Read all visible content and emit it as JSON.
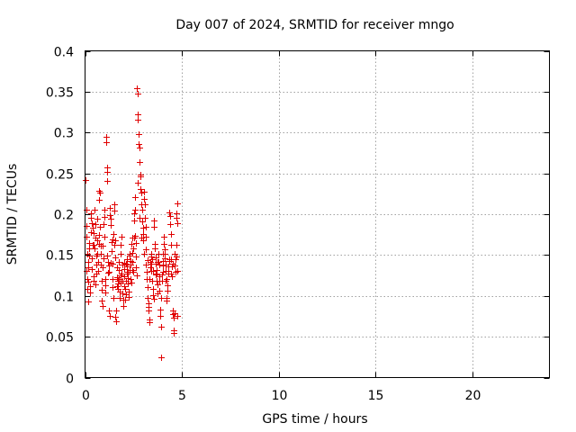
{
  "chart_data": {
    "type": "scatter",
    "title": "Day 007 of 2024, SRMTID for receiver mngo",
    "xlabel": "GPS time / hours",
    "ylabel": "SRMTID / TECUs",
    "xlim": [
      0,
      24
    ],
    "ylim": [
      0,
      0.4
    ],
    "xticks": [
      0,
      5,
      10,
      15,
      20
    ],
    "yticks": [
      0,
      0.05,
      0.1,
      0.15,
      0.2,
      0.25,
      0.3,
      0.35,
      0.4
    ],
    "xtick_labels": [
      "0",
      "5",
      "10",
      "15",
      "20"
    ],
    "ytick_labels": [
      "0",
      "0.05",
      "0.1",
      "0.15",
      "0.2",
      "0.25",
      "0.3",
      "0.35",
      "0.4"
    ],
    "grid": true,
    "marker": "+",
    "color": "#e00000",
    "series": [
      {
        "name": "SRMTID",
        "points": [
          [
            0.02,
            0.242
          ],
          [
            0.05,
            0.205
          ],
          [
            0.06,
            0.186
          ],
          [
            0.08,
            0.172
          ],
          [
            0.1,
            0.152
          ],
          [
            0.11,
            0.121
          ],
          [
            0.13,
            0.109
          ],
          [
            0.14,
            0.093
          ],
          [
            0.16,
            0.135
          ],
          [
            0.18,
            0.142
          ],
          [
            0.2,
            0.165
          ],
          [
            0.22,
            0.158
          ],
          [
            0.24,
            0.112
          ],
          [
            0.26,
            0.104
          ],
          [
            0.28,
            0.196
          ],
          [
            0.3,
            0.201
          ],
          [
            0.32,
            0.178
          ],
          [
            0.34,
            0.146
          ],
          [
            0.36,
            0.133
          ],
          [
            0.38,
            0.162
          ],
          [
            0.4,
            0.183
          ],
          [
            0.42,
            0.177
          ],
          [
            0.44,
            0.124
          ],
          [
            0.46,
            0.118
          ],
          [
            0.48,
            0.158
          ],
          [
            0.5,
            0.205
          ],
          [
            0.52,
            0.188
          ],
          [
            0.54,
            0.171
          ],
          [
            0.56,
            0.149
          ],
          [
            0.58,
            0.138
          ],
          [
            0.6,
            0.127
          ],
          [
            0.62,
            0.168
          ],
          [
            0.64,
            0.195
          ],
          [
            0.66,
            0.142
          ],
          [
            0.68,
            0.131
          ],
          [
            0.7,
            0.175
          ],
          [
            0.72,
            0.229
          ],
          [
            0.74,
            0.218
          ],
          [
            0.76,
            0.226
          ],
          [
            0.78,
            0.185
          ],
          [
            0.8,
            0.161
          ],
          [
            0.82,
            0.152
          ],
          [
            0.84,
            0.119
          ],
          [
            0.86,
            0.107
          ],
          [
            0.88,
            0.094
          ],
          [
            0.9,
            0.088
          ],
          [
            0.92,
            0.135
          ],
          [
            0.94,
            0.146
          ],
          [
            0.96,
            0.188
          ],
          [
            0.98,
            0.197
          ],
          [
            1.0,
            0.205
          ],
          [
            1.02,
            0.173
          ],
          [
            1.04,
            0.113
          ],
          [
            1.06,
            0.104
          ],
          [
            1.08,
            0.295
          ],
          [
            1.1,
            0.288
          ],
          [
            1.12,
            0.257
          ],
          [
            1.14,
            0.252
          ],
          [
            1.16,
            0.241
          ],
          [
            1.18,
            0.128
          ],
          [
            1.2,
            0.142
          ],
          [
            1.22,
            0.137
          ],
          [
            1.24,
            0.082
          ],
          [
            1.26,
            0.075
          ],
          [
            1.28,
            0.199
          ],
          [
            1.3,
            0.208
          ],
          [
            1.32,
            0.187
          ],
          [
            1.34,
            0.195
          ],
          [
            1.36,
            0.166
          ],
          [
            1.38,
            0.155
          ],
          [
            1.4,
            0.139
          ],
          [
            1.42,
            0.121
          ],
          [
            1.44,
            0.111
          ],
          [
            1.46,
            0.098
          ],
          [
            1.48,
            0.176
          ],
          [
            1.5,
            0.212
          ],
          [
            1.52,
            0.204
          ],
          [
            1.54,
            0.168
          ],
          [
            1.56,
            0.147
          ],
          [
            1.58,
            0.074
          ],
          [
            1.6,
            0.069
          ],
          [
            1.62,
            0.082
          ],
          [
            1.64,
            0.123
          ],
          [
            1.66,
            0.135
          ],
          [
            1.68,
            0.118
          ],
          [
            1.7,
            0.115
          ],
          [
            1.72,
            0.109
          ],
          [
            1.74,
            0.132
          ],
          [
            1.76,
            0.142
          ],
          [
            1.78,
            0.105
          ],
          [
            1.8,
            0.098
          ],
          [
            1.82,
            0.125
          ],
          [
            1.84,
            0.151
          ],
          [
            1.86,
            0.163
          ],
          [
            1.88,
            0.172
          ],
          [
            1.9,
            0.127
          ],
          [
            1.92,
            0.118
          ],
          [
            1.94,
            0.103
          ],
          [
            1.96,
            0.095
          ],
          [
            1.98,
            0.088
          ],
          [
            2.0,
            0.112
          ],
          [
            2.02,
            0.133
          ],
          [
            2.04,
            0.141
          ],
          [
            2.06,
            0.108
          ],
          [
            2.08,
            0.095
          ],
          [
            2.1,
            0.102
          ],
          [
            2.12,
            0.118
          ],
          [
            2.14,
            0.127
          ],
          [
            2.16,
            0.145
          ],
          [
            2.18,
            0.136
          ],
          [
            2.2,
            0.122
          ],
          [
            2.22,
            0.115
          ],
          [
            2.24,
            0.105
          ],
          [
            2.26,
            0.099
          ],
          [
            2.28,
            0.132
          ],
          [
            2.3,
            0.149
          ],
          [
            2.32,
            0.152
          ],
          [
            2.34,
            0.143
          ],
          [
            2.36,
            0.138
          ],
          [
            2.38,
            0.116
          ],
          [
            2.4,
            0.164
          ],
          [
            2.42,
            0.171
          ],
          [
            2.44,
            0.153
          ],
          [
            2.46,
            0.132
          ],
          [
            2.48,
            0.129
          ],
          [
            2.5,
            0.158
          ],
          [
            2.52,
            0.192
          ],
          [
            2.54,
            0.201
          ],
          [
            2.56,
            0.221
          ],
          [
            2.58,
            0.206
          ],
          [
            2.6,
            0.174
          ],
          [
            2.62,
            0.165
          ],
          [
            2.64,
            0.148
          ],
          [
            2.66,
            0.125
          ],
          [
            2.68,
            0.354
          ],
          [
            2.7,
            0.348
          ],
          [
            2.72,
            0.322
          ],
          [
            2.74,
            0.316
          ],
          [
            2.76,
            0.298
          ],
          [
            2.78,
            0.286
          ],
          [
            2.8,
            0.281
          ],
          [
            2.82,
            0.264
          ],
          [
            2.84,
            0.248
          ],
          [
            2.86,
            0.246
          ],
          [
            2.88,
            0.231
          ],
          [
            2.9,
            0.226
          ],
          [
            2.92,
            0.212
          ],
          [
            2.94,
            0.205
          ],
          [
            2.96,
            0.191
          ],
          [
            2.98,
            0.184
          ],
          [
            3.0,
            0.176
          ],
          [
            3.02,
            0.168
          ],
          [
            3.04,
            0.219
          ],
          [
            3.06,
            0.227
          ],
          [
            3.08,
            0.212
          ],
          [
            3.1,
            0.196
          ],
          [
            3.12,
            0.185
          ],
          [
            3.14,
            0.172
          ],
          [
            3.16,
            0.157
          ],
          [
            3.18,
            0.129
          ],
          [
            3.2,
            0.121
          ],
          [
            3.22,
            0.111
          ],
          [
            3.24,
            0.098
          ],
          [
            3.26,
            0.091
          ],
          [
            3.28,
            0.087
          ],
          [
            3.3,
            0.082
          ],
          [
            3.32,
            0.068
          ],
          [
            3.34,
            0.071
          ],
          [
            3.36,
            0.135
          ],
          [
            3.38,
            0.142
          ],
          [
            3.4,
            0.148
          ],
          [
            3.42,
            0.131
          ],
          [
            3.44,
            0.152
          ],
          [
            3.46,
            0.145
          ],
          [
            3.48,
            0.118
          ],
          [
            3.5,
            0.109
          ],
          [
            3.52,
            0.101
          ],
          [
            3.54,
            0.096
          ],
          [
            3.56,
            0.185
          ],
          [
            3.58,
            0.192
          ],
          [
            3.6,
            0.164
          ],
          [
            3.62,
            0.158
          ],
          [
            3.64,
            0.147
          ],
          [
            3.66,
            0.139
          ],
          [
            3.68,
            0.132
          ],
          [
            3.7,
            0.127
          ],
          [
            3.72,
            0.118
          ],
          [
            3.74,
            0.103
          ],
          [
            3.76,
            0.114
          ],
          [
            3.78,
            0.142
          ],
          [
            3.8,
            0.151
          ],
          [
            3.82,
            0.138
          ],
          [
            3.84,
            0.124
          ],
          [
            3.86,
            0.106
          ],
          [
            3.88,
            0.083
          ],
          [
            3.9,
            0.076
          ],
          [
            3.92,
            0.062
          ],
          [
            3.94,
            0.025
          ],
          [
            3.96,
            0.118
          ],
          [
            3.98,
            0.126
          ],
          [
            4.0,
            0.137
          ],
          [
            4.02,
            0.143
          ],
          [
            4.04,
            0.151
          ],
          [
            4.06,
            0.164
          ],
          [
            4.08,
            0.173
          ],
          [
            4.1,
            0.152
          ],
          [
            4.12,
            0.146
          ],
          [
            4.14,
            0.138
          ],
          [
            4.16,
            0.131
          ],
          [
            4.18,
            0.119
          ],
          [
            4.2,
            0.097
          ],
          [
            4.22,
            0.094
          ],
          [
            4.24,
            0.106
          ],
          [
            4.26,
            0.113
          ],
          [
            4.28,
            0.131
          ],
          [
            4.3,
            0.127
          ],
          [
            4.32,
            0.136
          ],
          [
            4.34,
            0.145
          ],
          [
            4.36,
            0.202
          ],
          [
            4.38,
            0.198
          ],
          [
            4.4,
            0.188
          ],
          [
            4.42,
            0.176
          ],
          [
            4.44,
            0.163
          ],
          [
            4.46,
            0.145
          ],
          [
            4.48,
            0.136
          ],
          [
            4.5,
            0.124
          ],
          [
            4.52,
            0.082
          ],
          [
            4.54,
            0.078
          ],
          [
            4.56,
            0.073
          ],
          [
            4.58,
            0.058
          ],
          [
            4.6,
            0.054
          ],
          [
            4.62,
            0.079
          ],
          [
            4.64,
            0.137
          ],
          [
            4.66,
            0.129
          ],
          [
            4.68,
            0.145
          ],
          [
            4.7,
            0.162
          ],
          [
            4.72,
            0.196
          ],
          [
            4.74,
            0.201
          ],
          [
            4.76,
            0.213
          ],
          [
            4.78,
            0.189
          ],
          [
            0.07,
            0.131
          ],
          [
            0.15,
            0.117
          ],
          [
            0.23,
            0.149
          ],
          [
            0.33,
            0.189
          ],
          [
            0.43,
            0.163
          ],
          [
            0.53,
            0.114
          ],
          [
            0.63,
            0.152
          ],
          [
            0.73,
            0.164
          ],
          [
            0.83,
            0.138
          ],
          [
            0.93,
            0.161
          ],
          [
            1.03,
            0.121
          ],
          [
            1.13,
            0.149
          ],
          [
            1.23,
            0.129
          ],
          [
            1.33,
            0.141
          ],
          [
            1.43,
            0.169
          ],
          [
            1.53,
            0.162
          ],
          [
            1.63,
            0.112
          ],
          [
            1.73,
            0.121
          ],
          [
            1.83,
            0.116
          ],
          [
            1.93,
            0.138
          ],
          [
            2.03,
            0.124
          ],
          [
            2.13,
            0.139
          ],
          [
            2.23,
            0.129
          ],
          [
            2.33,
            0.121
          ],
          [
            2.43,
            0.142
          ],
          [
            2.53,
            0.171
          ],
          [
            2.63,
            0.135
          ],
          [
            2.73,
            0.239
          ],
          [
            2.83,
            0.196
          ],
          [
            2.93,
            0.171
          ],
          [
            3.03,
            0.151
          ],
          [
            3.13,
            0.138
          ],
          [
            3.23,
            0.144
          ],
          [
            3.33,
            0.121
          ],
          [
            3.43,
            0.139
          ],
          [
            3.53,
            0.131
          ],
          [
            3.63,
            0.126
          ],
          [
            3.73,
            0.142
          ],
          [
            3.83,
            0.119
          ],
          [
            3.93,
            0.098
          ],
          [
            4.03,
            0.129
          ],
          [
            4.13,
            0.157
          ],
          [
            4.23,
            0.121
          ],
          [
            4.33,
            0.143
          ],
          [
            4.43,
            0.127
          ],
          [
            4.53,
            0.139
          ],
          [
            4.63,
            0.152
          ],
          [
            4.73,
            0.148
          ],
          [
            4.77,
            0.131
          ],
          [
            4.79,
            0.076
          ]
        ]
      }
    ]
  }
}
